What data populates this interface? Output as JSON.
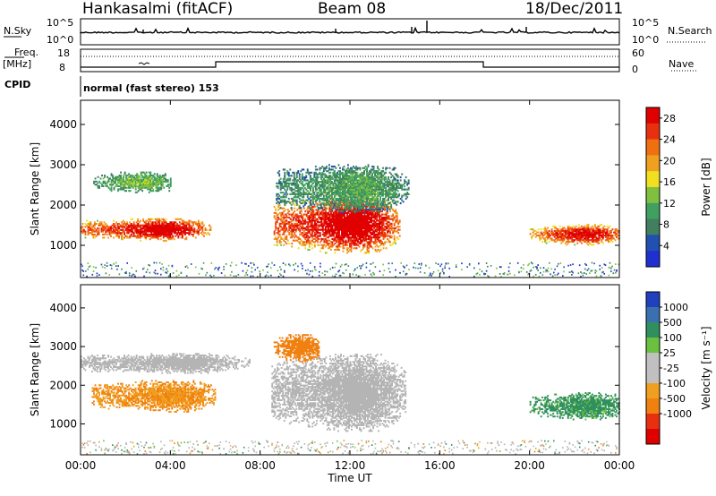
{
  "header": {
    "station": "Hankasalmi (fitACF)",
    "beam": "Beam 08",
    "date": "18/Dec/2011"
  },
  "info_panels": {
    "nsky_label": "N.Sky",
    "nsky_ticks": [
      "10^5",
      "10^0"
    ],
    "nsearch_label": "N.Search",
    "nsearch_ticks": [
      "10^5",
      "10^0"
    ],
    "freq_label": "Freq.",
    "freq_unit": "[MHz]",
    "freq_ticks": [
      "18",
      "8"
    ],
    "nave_label": "Nave",
    "nave_ticks": [
      "60",
      "0"
    ],
    "cpid_label": "CPID",
    "cpid_value": "normal (fast stereo) 153"
  },
  "colors": {
    "power": [
      "#2030d0",
      "#2050b0",
      "#407f60",
      "#40a060",
      "#80c040",
      "#f0e020",
      "#f0a020",
      "#f07010",
      "#e83010",
      "#e00000"
    ],
    "velocity": [
      "#2040c0",
      "#3a70b0",
      "#2f8f5f",
      "#6cc040",
      "#c0c0c0",
      "#c0c0c0",
      "#f0a020",
      "#f08010",
      "#e83010",
      "#e00000"
    ],
    "ground_scatter": "#b4b4b4"
  },
  "chart_data": [
    {
      "type": "heatmap",
      "name": "power",
      "ylabel": "Slant Range [km]",
      "y_ticks": [
        1000,
        2000,
        3000,
        4000
      ],
      "ylim": [
        200,
        4600
      ],
      "x_ticks": [
        "00:00",
        "04:00",
        "08:00",
        "12:00",
        "16:00",
        "20:00",
        "00:00"
      ],
      "xlim_hours": [
        0,
        24
      ],
      "colorbar": {
        "label": "Power [dB]",
        "ticks": [
          4,
          8,
          12,
          16,
          20,
          24,
          28
        ],
        "range": [
          0,
          30
        ]
      },
      "features": [
        {
          "t": [
            0.0,
            5.8
          ],
          "r": [
            1100,
            1650
          ],
          "level": 27
        },
        {
          "t": [
            0.5,
            4.0
          ],
          "r": [
            2300,
            2800
          ],
          "level": 12
        },
        {
          "t": [
            8.6,
            14.2
          ],
          "r": [
            800,
            2200
          ],
          "level": 28
        },
        {
          "t": [
            8.7,
            14.6
          ],
          "r": [
            1800,
            3000
          ],
          "level": 10
        },
        {
          "t": [
            20.0,
            24.0
          ],
          "r": [
            1000,
            1500
          ],
          "level": 26
        }
      ]
    },
    {
      "type": "heatmap",
      "name": "velocity",
      "ylabel": "Slant Range [km]",
      "y_ticks": [
        1000,
        2000,
        3000,
        4000
      ],
      "ylim": [
        200,
        4600
      ],
      "x_ticks": [
        "00:00",
        "04:00",
        "08:00",
        "12:00",
        "16:00",
        "20:00",
        "00:00"
      ],
      "xlabel": "Time UT",
      "xlim_hours": [
        0,
        24
      ],
      "colorbar": {
        "label": "Velocity [m s⁻¹]",
        "ticks": [
          1000,
          500,
          100,
          25,
          -25,
          -100,
          -500,
          -1000
        ],
        "range": [
          -1000,
          1000
        ]
      },
      "features": [
        {
          "t": [
            0.5,
            6.0
          ],
          "r": [
            1300,
            2100
          ],
          "velocity": -100
        },
        {
          "t": [
            0.0,
            7.5
          ],
          "r": [
            2300,
            2800
          ],
          "ground_scatter": true
        },
        {
          "t": [
            8.5,
            14.5
          ],
          "r": [
            800,
            2800
          ],
          "ground_scatter": true
        },
        {
          "t": [
            8.6,
            10.6
          ],
          "r": [
            2600,
            3300
          ],
          "velocity": -200
        },
        {
          "t": [
            20.0,
            24.0
          ],
          "r": [
            1100,
            1800
          ],
          "velocity": 80
        }
      ]
    }
  ]
}
